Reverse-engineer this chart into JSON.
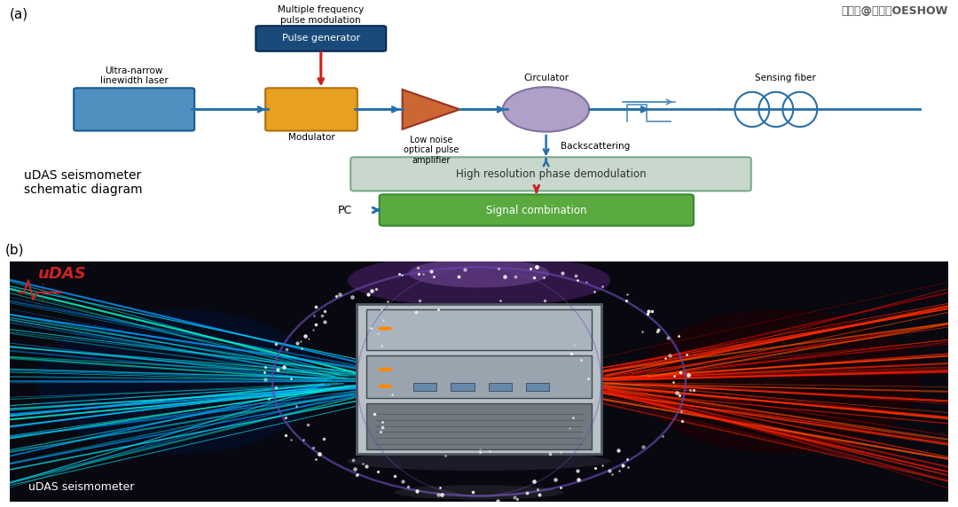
{
  "title_watermark": "搜狐号@光电汇OESHOW",
  "label_a": "(a)",
  "label_b": "(b)",
  "text_udas_label": "uDAS seismometer\nschematic diagram",
  "text_udas_bottom": "uDAS seismometer",
  "pulse_gen_text": "Pulse generator",
  "pulse_mod_text": "Multiple frequency\npulse modulation",
  "modulator_text": "Modulator",
  "amplifier_text": "Low noise\noptical pulse\namplifier",
  "circulator_text": "Circulator",
  "backscattering_text": "Backscattering",
  "sensing_fiber_text": "Sensing fiber",
  "laser_text": "Ultra-narrow\nlinewidth laser",
  "demod_text": "High resolution phase demodulation",
  "signal_comb_text": "Signal combination",
  "pc_text": "PC",
  "bg_color": "#ffffff",
  "laser_color": "#5090c0",
  "modulator_color": "#e8a020",
  "amplifier_color": "#cc6633",
  "circulator_color": "#b0a0c8",
  "demod_color": "#c8d8cc",
  "signal_color": "#5aaa40",
  "pulse_gen_color": "#1a4a7a",
  "line_color": "#2870a8",
  "arrow_color": "#2870a8",
  "red_arrow_color": "#cc2020",
  "pulse_waveform_color": "#5090c0"
}
